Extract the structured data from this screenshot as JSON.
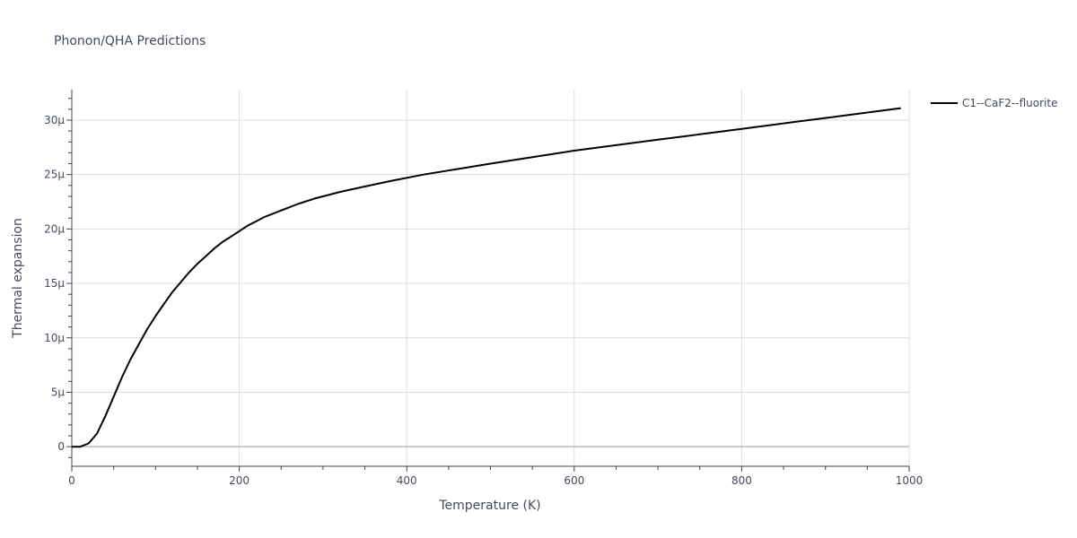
{
  "chart_data": {
    "type": "line",
    "title": "Phonon/QHA Predictions",
    "xlabel": "Temperature (K)",
    "ylabel": "Thermal expansion",
    "xlim": [
      0,
      1000
    ],
    "ylim": [
      -1.8,
      32.8
    ],
    "x_ticks": [
      0,
      200,
      400,
      600,
      800,
      1000
    ],
    "x_tick_labels": [
      "0",
      "200",
      "400",
      "600",
      "800",
      "1000"
    ],
    "y_ticks": [
      0,
      5,
      10,
      15,
      20,
      25,
      30
    ],
    "y_tick_labels": [
      "0",
      "5μ",
      "10μ",
      "15μ",
      "20μ",
      "25μ",
      "30μ"
    ],
    "y_unit_scale": 1e-06,
    "grid": true,
    "legend_position": "top-right",
    "series": [
      {
        "name": "C1--CaF2--fluorite",
        "color": "#000000",
        "x": [
          0,
          10,
          20,
          30,
          40,
          50,
          60,
          70,
          80,
          90,
          100,
          110,
          120,
          130,
          140,
          150,
          160,
          170,
          180,
          190,
          200,
          210,
          220,
          230,
          240,
          250,
          270,
          290,
          320,
          350,
          380,
          420,
          460,
          500,
          550,
          600,
          650,
          700,
          750,
          800,
          850,
          900,
          950,
          990
        ],
        "y": [
          0,
          0,
          0.3,
          1.2,
          2.8,
          4.6,
          6.4,
          8.0,
          9.4,
          10.8,
          12.0,
          13.1,
          14.2,
          15.1,
          16.0,
          16.8,
          17.5,
          18.2,
          18.8,
          19.3,
          19.8,
          20.3,
          20.7,
          21.1,
          21.4,
          21.7,
          22.3,
          22.8,
          23.4,
          23.9,
          24.4,
          25.0,
          25.5,
          26.0,
          26.6,
          27.2,
          27.7,
          28.2,
          28.7,
          29.2,
          29.7,
          30.2,
          30.7,
          31.1
        ]
      }
    ]
  }
}
